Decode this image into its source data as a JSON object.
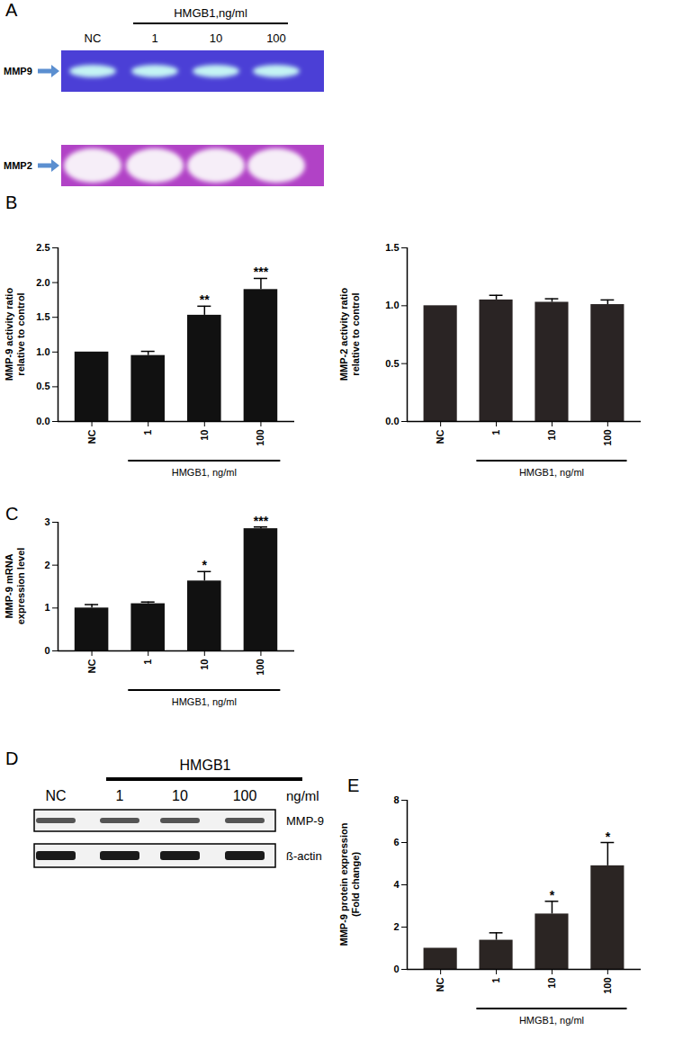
{
  "chart_data": [
    {
      "type": "blot",
      "panel": "A",
      "header": "HMGB1,ng/ml",
      "lanes": [
        "NC",
        "1",
        "10",
        "100"
      ],
      "bands": [
        "MMP9",
        "MMP2"
      ]
    },
    {
      "type": "bar",
      "panel": "B",
      "y_label": "MMP-9 activity ratio\nrelative to control",
      "categories": [
        "NC",
        "1",
        "10",
        "100"
      ],
      "values": [
        1.0,
        0.95,
        1.53,
        1.9
      ],
      "errors": [
        0,
        0.06,
        0.13,
        0.16
      ],
      "significance": [
        null,
        null,
        "**",
        "***"
      ],
      "color": "#111111",
      "ylim": [
        0,
        2.5
      ],
      "yticks": [
        {
          "value": 0,
          "label": "0.0"
        },
        0.5,
        {
          "value": 1,
          "label": "1.0"
        },
        1.5,
        {
          "value": 2,
          "label": "2.0"
        },
        2.5
      ],
      "group": {
        "label": "HMGB1, ng/ml",
        "from": "1",
        "to": "100"
      }
    },
    {
      "type": "bar",
      "y_label": "MMP-2 activity ratio\nrelative to control",
      "categories": [
        "NC",
        "1",
        "10",
        "100"
      ],
      "values": [
        1.0,
        1.05,
        1.03,
        1.01
      ],
      "errors": [
        0,
        0.04,
        0.03,
        0.04
      ],
      "significance": [
        null,
        null,
        null,
        null
      ],
      "color": "#2a2424",
      "ylim": [
        0,
        1.5
      ],
      "yticks": [
        {
          "value": 0,
          "label": "0.0"
        },
        0.5,
        {
          "value": 1,
          "label": "1.0"
        },
        1.5
      ],
      "group": {
        "label": "HMGB1, ng/ml",
        "from": "1",
        "to": "100"
      }
    },
    {
      "type": "bar",
      "panel": "C",
      "y_label": "MMP-9 mRNA\nexpression level",
      "categories": [
        "NC",
        "1",
        "10",
        "100"
      ],
      "values": [
        1.0,
        1.1,
        1.63,
        2.85
      ],
      "errors": [
        0.08,
        0.04,
        0.22,
        0.04
      ],
      "significance": [
        null,
        null,
        "*",
        "***"
      ],
      "color": "#111111",
      "ylim": [
        0,
        3
      ],
      "yticks": [
        0,
        1,
        2,
        3
      ],
      "group": {
        "label": "HMGB1, ng/ml",
        "from": "1",
        "to": "100"
      }
    },
    {
      "type": "blot",
      "panel": "D",
      "header": "HMGB1",
      "unit": "ng/ml",
      "lanes": [
        "NC",
        "1",
        "10",
        "100"
      ],
      "bands": [
        "MMP-9",
        "ß-actin"
      ]
    },
    {
      "type": "bar",
      "panel": "E",
      "y_label": "MMP-9 protein expression\n(Fold change)",
      "categories": [
        "NC",
        "1",
        "10",
        "100"
      ],
      "values": [
        1.0,
        1.38,
        2.62,
        4.9
      ],
      "errors": [
        0,
        0.35,
        0.6,
        1.1
      ],
      "significance": [
        null,
        null,
        "*",
        "*"
      ],
      "color": "#2b2523",
      "ylim": [
        0,
        8
      ],
      "yticks": [
        0,
        2,
        4,
        6,
        8
      ],
      "group": {
        "label": "HMGB1, ng/ml",
        "from": "1",
        "to": "100"
      }
    }
  ]
}
